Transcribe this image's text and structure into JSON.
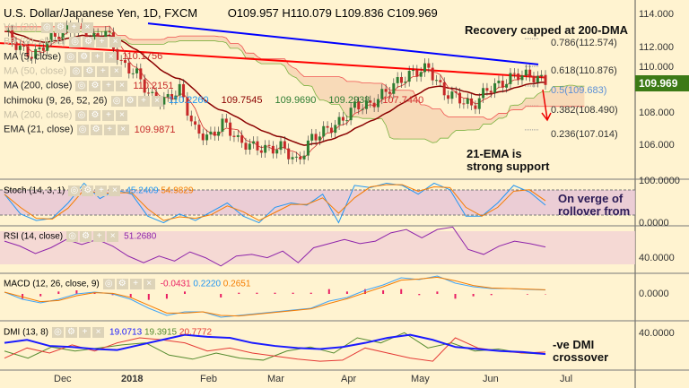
{
  "header": {
    "symbol_title": "U.S. Dollar/Japanese Yen, 1D, FXCM",
    "open": "O109.957",
    "high": "H110.079",
    "low": "L109.836",
    "close": "C109.969"
  },
  "indicators": [
    {
      "label": "Vol (20)",
      "values": []
    },
    {
      "label": "BB (20, close)",
      "values": []
    },
    {
      "label": "MA (5, close)",
      "values": [
        "110.1756"
      ]
    },
    {
      "label": "MA (50, close)",
      "values": []
    },
    {
      "label": "MA (200, close)",
      "values": [
        "110.2151"
      ]
    },
    {
      "label": "Ichimoku (9, 26, 52, 26)",
      "values": [
        "110.2260",
        "109.7545",
        "109.9690",
        "109.2938",
        "107.7440"
      ]
    },
    {
      "label": "MA (200, close)",
      "values": []
    },
    {
      "label": "EMA (21, close)",
      "values": [
        "109.9871"
      ]
    }
  ],
  "annotations": {
    "top": "Recovery capped at 200-DMA",
    "support": "21-EMA is strong support",
    "stoch": "On verge of rollover from",
    "dmi": "-ve DMI crossover"
  },
  "fib_levels": [
    {
      "label": "0.786(112.574)",
      "value": 112.574
    },
    {
      "label": "0.618(110.876)",
      "value": 110.876
    },
    {
      "label": "0.5(109.683)",
      "value": 109.683
    },
    {
      "label": "0.382(108.490)",
      "value": 108.49
    },
    {
      "label": "0.236(107.014)",
      "value": 107.014
    }
  ],
  "price_axis": [
    "114.000",
    "112.000",
    "110.000",
    "108.000",
    "106.000"
  ],
  "last_price": "109.969",
  "panels": {
    "stoch": {
      "label": "Stoch (14, 3, 1)",
      "k": "45.2409",
      "d": "54.9829",
      "axis": [
        "100.0000",
        "0.0000"
      ]
    },
    "rsi": {
      "label": "RSI (14, close)",
      "value": "51.2680",
      "axis": [
        "40.0000"
      ]
    },
    "macd": {
      "label": "MACD (12, 26, close, 9)",
      "hist": "-0.0431",
      "macd": "0.2220",
      "signal": "0.2651",
      "axis": [
        "0.0000"
      ]
    },
    "dmi": {
      "label": "DMI (13, 8)",
      "adx": "19.0713",
      "pdi": "19.3915",
      "mdi": "20.7772",
      "axis": [
        "40.0000"
      ]
    }
  },
  "dates": [
    "Dec",
    "2018",
    "Feb",
    "Mar",
    "Apr",
    "May",
    "Jun",
    "Jul"
  ],
  "colors": {
    "bg": "#fff3d0",
    "up": "#2e7d32",
    "down": "#c62828",
    "trend": "#0000ff",
    "ma200": "#ff0000",
    "ema21": "#8b0000",
    "last": "#3c7a16"
  },
  "chart_data": {
    "type": "line",
    "title": "U.S. Dollar/Japanese Yen, 1D, FXCM",
    "ylim": [
      104.5,
      115
    ],
    "close": [
      113,
      112,
      111.5,
      112.5,
      113,
      113.3,
      112.5,
      113,
      111,
      110.5,
      109,
      108.8,
      109.5,
      107,
      106.5,
      107.5,
      106.3,
      106,
      105.8,
      106,
      105,
      106.5,
      107,
      107.5,
      108.5,
      108.5,
      109.3,
      110,
      110.5,
      110.8,
      109.3,
      109,
      108.4,
      109.5,
      109.8,
      110.4,
      110.3,
      109.97
    ],
    "ma200": [
      112.3,
      110.2
    ],
    "trendline": [
      113.5,
      111.0
    ],
    "stoch_k": [
      70,
      25,
      10,
      15,
      50,
      95,
      60,
      80,
      70,
      20,
      5,
      25,
      10,
      30,
      50,
      20,
      5,
      40,
      50,
      45,
      70,
      5,
      90,
      85,
      95,
      90,
      70,
      95,
      80,
      20,
      20,
      50,
      90,
      75,
      45
    ],
    "rsi": [
      58,
      52,
      43,
      50,
      60,
      54,
      60,
      52,
      40,
      32,
      40,
      34,
      45,
      38,
      28,
      40,
      42,
      38,
      46,
      32,
      50,
      55,
      60,
      55,
      58,
      68,
      72,
      62,
      72,
      75,
      48,
      42,
      52,
      58,
      55,
      51
    ],
    "macd": [
      0.1,
      -0.3,
      -0.5,
      -0.3,
      0,
      0.1,
      0,
      -0.3,
      -0.8,
      -1.2,
      -1.0,
      -1.0,
      -1.3,
      -1.2,
      -1.1,
      -1.0,
      -0.9,
      -0.8,
      -0.4,
      -0.2,
      0.2,
      0.5,
      0.9,
      0.8,
      1.0,
      0.6,
      0.4,
      0.3,
      0.3,
      0.25,
      0.22
    ],
    "adx": [
      30,
      33,
      27,
      26,
      24,
      23,
      28,
      33,
      38,
      36,
      35,
      30,
      27,
      25,
      24,
      26,
      30,
      35,
      38,
      33,
      26,
      24,
      22,
      21,
      19
    ],
    "pdi": [
      22,
      15,
      26,
      22,
      25,
      28,
      30,
      18,
      14,
      20,
      15,
      13,
      22,
      26,
      20,
      35,
      30,
      40,
      25,
      30,
      22,
      24,
      20,
      19
    ],
    "mdi": [
      15,
      25,
      20,
      28,
      22,
      30,
      35,
      33,
      30,
      22,
      25,
      20,
      17,
      14,
      12,
      13,
      25,
      20,
      15,
      12,
      35,
      25,
      22,
      20,
      21
    ]
  }
}
